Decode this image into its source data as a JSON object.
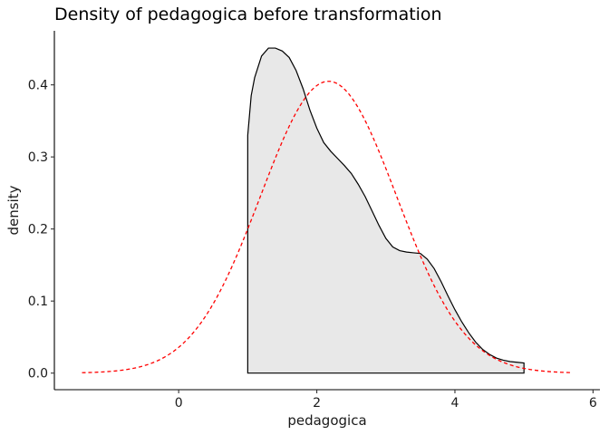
{
  "chart_data": {
    "type": "area",
    "title": "Density of pedagogica before transformation",
    "xlabel": "pedagogica",
    "ylabel": "density",
    "xlim": [
      -1.8,
      6.1
    ],
    "ylim": [
      -0.023,
      0.475
    ],
    "x_ticks": [
      0,
      2,
      4,
      6
    ],
    "y_ticks": [
      0.0,
      0.1,
      0.2,
      0.3,
      0.4
    ],
    "x_tick_labels": [
      "0",
      "2",
      "4",
      "6"
    ],
    "y_tick_labels": [
      "0.0",
      "0.1",
      "0.2",
      "0.3",
      "0.4"
    ],
    "grid": false,
    "legend": "none",
    "series": [
      {
        "kind": "density",
        "fill": "#e8e8e8",
        "stroke": "#000000",
        "x": [
          1.0,
          1.0,
          1.05,
          1.1,
          1.2,
          1.3,
          1.4,
          1.5,
          1.6,
          1.7,
          1.8,
          1.9,
          2.0,
          2.1,
          2.2,
          2.3,
          2.4,
          2.5,
          2.6,
          2.7,
          2.8,
          2.9,
          3.0,
          3.1,
          3.2,
          3.3,
          3.4,
          3.5,
          3.6,
          3.7,
          3.8,
          3.9,
          4.0,
          4.1,
          4.2,
          4.3,
          4.4,
          4.5,
          4.6,
          4.7,
          4.8,
          4.9,
          5.0,
          5.0
        ],
        "y": [
          0.0,
          0.33,
          0.385,
          0.41,
          0.44,
          0.451,
          0.451,
          0.447,
          0.438,
          0.42,
          0.395,
          0.365,
          0.34,
          0.32,
          0.308,
          0.298,
          0.288,
          0.277,
          0.262,
          0.245,
          0.225,
          0.205,
          0.187,
          0.175,
          0.17,
          0.168,
          0.167,
          0.166,
          0.158,
          0.145,
          0.127,
          0.107,
          0.088,
          0.071,
          0.056,
          0.043,
          0.033,
          0.026,
          0.021,
          0.018,
          0.016,
          0.015,
          0.014,
          0.0
        ]
      },
      {
        "kind": "normal",
        "stroke": "#ff0000",
        "linestyle": "dashed",
        "mean": 2.17,
        "sd": 0.985,
        "x_range": [
          -1.4,
          5.7
        ]
      }
    ]
  }
}
